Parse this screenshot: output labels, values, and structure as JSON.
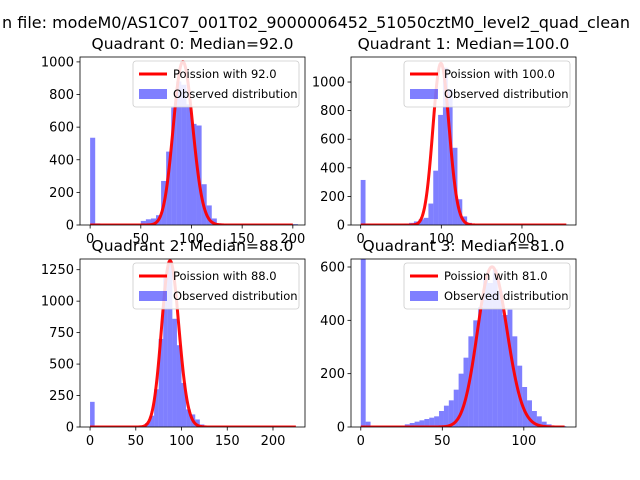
{
  "figure": {
    "suptitle": "n file: modeM0/AS1C07_001T02_9000006452_51050cztM0_level2_quad_clean"
  },
  "colors": {
    "observed": "#0000ff",
    "poisson": "#ff0000"
  },
  "chart_data": [
    {
      "type": "histogram",
      "title": "Quadrant 0: Median=92.0",
      "median": 92.0,
      "xlim": [
        -10,
        212
      ],
      "ylim": [
        0,
        1030
      ],
      "xticks": [
        0,
        50,
        100,
        150,
        200
      ],
      "yticks": [
        0,
        200,
        400,
        600,
        800,
        1000
      ],
      "bin_width": 5,
      "series": [
        {
          "name": "Observed distribution",
          "kind": "bar",
          "x": [
            0,
            5,
            10,
            15,
            20,
            25,
            30,
            35,
            40,
            45,
            50,
            55,
            60,
            65,
            70,
            75,
            80,
            85,
            90,
            95,
            100,
            105,
            110,
            115,
            120,
            125,
            130,
            135,
            140,
            145,
            150,
            155,
            160,
            165,
            170,
            175,
            180,
            185,
            190,
            195,
            200
          ],
          "values": [
            535,
            10,
            3,
            3,
            3,
            3,
            3,
            3,
            3,
            3,
            25,
            35,
            40,
            60,
            270,
            450,
            720,
            880,
            860,
            740,
            620,
            610,
            250,
            120,
            40,
            10,
            5,
            3,
            3,
            3,
            3,
            3,
            3,
            3,
            3,
            3,
            3,
            3,
            3,
            3,
            5
          ]
        },
        {
          "name": "Poission with 92.0",
          "kind": "line",
          "mu": 92.0,
          "peak": 1000,
          "x_range": [
            0,
            200
          ]
        }
      ]
    },
    {
      "type": "histogram",
      "title": "Quadrant 1: Median=100.0",
      "median": 100.0,
      "xlim": [
        -12,
        267
      ],
      "ylim": [
        0,
        1175
      ],
      "xticks": [
        0,
        100,
        200
      ],
      "yticks": [
        0,
        200,
        400,
        600,
        800,
        1000
      ],
      "bin_width": 6,
      "series": [
        {
          "name": "Observed distribution",
          "kind": "bar",
          "x": [
            0,
            6,
            12,
            18,
            24,
            30,
            36,
            42,
            48,
            54,
            60,
            66,
            72,
            78,
            84,
            90,
            96,
            102,
            108,
            114,
            120,
            126,
            132,
            138,
            144,
            150,
            156,
            162,
            168,
            174,
            180,
            186,
            192,
            198,
            204,
            210,
            216,
            222,
            228,
            234,
            240,
            246,
            252
          ],
          "values": [
            315,
            10,
            3,
            3,
            3,
            3,
            3,
            3,
            5,
            10,
            15,
            25,
            40,
            50,
            150,
            380,
            770,
            1100,
            950,
            540,
            180,
            60,
            15,
            5,
            3,
            3,
            3,
            3,
            3,
            3,
            3,
            3,
            3,
            3,
            3,
            3,
            3,
            3,
            3,
            3,
            3,
            3,
            3
          ]
        },
        {
          "name": "Poission with 100.0",
          "kind": "line",
          "mu": 100.0,
          "peak": 1130,
          "x_range": [
            0,
            255
          ]
        }
      ]
    },
    {
      "type": "histogram",
      "title": "Quadrant 2: Median=88.0",
      "median": 88.0,
      "xlim": [
        -11,
        235
      ],
      "ylim": [
        0,
        1335
      ],
      "xticks": [
        0,
        50,
        100,
        150,
        200
      ],
      "yticks": [
        0,
        250,
        500,
        750,
        1000,
        1250
      ],
      "bin_width": 5,
      "series": [
        {
          "name": "Observed distribution",
          "kind": "bar",
          "x": [
            0,
            5,
            10,
            15,
            20,
            25,
            30,
            35,
            40,
            45,
            50,
            55,
            60,
            65,
            70,
            75,
            80,
            85,
            90,
            95,
            100,
            105,
            110,
            115,
            120,
            125,
            130,
            135,
            140,
            145,
            150,
            155,
            160,
            165,
            170,
            175,
            180,
            185,
            190,
            195,
            200,
            205,
            210,
            215,
            220
          ],
          "values": [
            200,
            10,
            3,
            3,
            3,
            3,
            3,
            3,
            3,
            3,
            3,
            5,
            30,
            90,
            300,
            700,
            1200,
            1320,
            860,
            650,
            350,
            140,
            100,
            60,
            20,
            5,
            3,
            3,
            3,
            3,
            3,
            3,
            3,
            3,
            3,
            3,
            3,
            3,
            3,
            3,
            3,
            3,
            3,
            3,
            3
          ]
        },
        {
          "name": "Poission with 88.0",
          "kind": "line",
          "mu": 88.0,
          "peak": 1320,
          "x_range": [
            0,
            225
          ]
        }
      ]
    },
    {
      "type": "histogram",
      "title": "Quadrant 3: Median=81.0",
      "median": 81.0,
      "xlim": [
        -6,
        132
      ],
      "ylim": [
        0,
        630
      ],
      "xticks": [
        0,
        50,
        100
      ],
      "yticks": [
        0,
        200,
        400,
        600
      ],
      "bin_width": 3,
      "series": [
        {
          "name": "Observed distribution",
          "kind": "bar",
          "x": [
            0,
            3,
            6,
            9,
            12,
            15,
            18,
            21,
            24,
            27,
            30,
            33,
            36,
            39,
            42,
            45,
            48,
            51,
            54,
            57,
            60,
            63,
            66,
            69,
            72,
            75,
            78,
            81,
            84,
            87,
            90,
            93,
            96,
            99,
            102,
            105,
            108,
            111,
            114,
            117,
            120,
            123
          ],
          "values": [
            630,
            20,
            3,
            3,
            3,
            3,
            3,
            3,
            5,
            10,
            15,
            20,
            25,
            30,
            35,
            40,
            60,
            80,
            100,
            140,
            200,
            260,
            340,
            400,
            450,
            560,
            540,
            590,
            510,
            420,
            440,
            340,
            230,
            150,
            100,
            60,
            40,
            20,
            10,
            5,
            3,
            3
          ]
        },
        {
          "name": "Poission with 81.0",
          "kind": "line",
          "mu": 81.0,
          "peak": 600,
          "x_range": [
            0,
            125
          ]
        }
      ]
    }
  ]
}
